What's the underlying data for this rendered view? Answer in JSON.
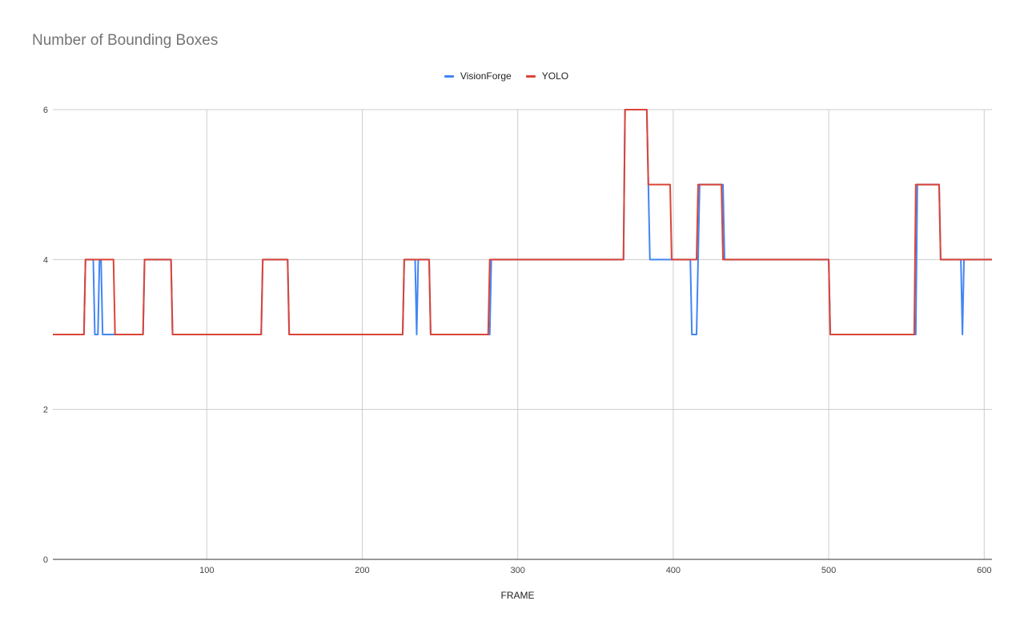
{
  "chart_data": {
    "type": "line",
    "title": "Number of Bounding Boxes",
    "xlabel": "FRAME",
    "ylabel": "",
    "xlim": [
      1,
      605
    ],
    "ylim": [
      0,
      6
    ],
    "x_ticks": [
      100,
      200,
      300,
      400,
      500,
      600
    ],
    "y_ticks": [
      0,
      2,
      4,
      6
    ],
    "grid": true,
    "legend_position": "top-center",
    "series": [
      {
        "name": "VisionForge",
        "color": "#4285f4",
        "points": [
          [
            1,
            3
          ],
          [
            21,
            3
          ],
          [
            22,
            4
          ],
          [
            27,
            4
          ],
          [
            28,
            3
          ],
          [
            30,
            3
          ],
          [
            31,
            4
          ],
          [
            32,
            4
          ],
          [
            33,
            3
          ],
          [
            40,
            3
          ],
          [
            41,
            3
          ],
          [
            59,
            3
          ],
          [
            60,
            4
          ],
          [
            77,
            4
          ],
          [
            78,
            3
          ],
          [
            135,
            3
          ],
          [
            136,
            4
          ],
          [
            152,
            4
          ],
          [
            153,
            3
          ],
          [
            226,
            3
          ],
          [
            227,
            4
          ],
          [
            234,
            4
          ],
          [
            235,
            3
          ],
          [
            236,
            4
          ],
          [
            243,
            4
          ],
          [
            244,
            3
          ],
          [
            282,
            3
          ],
          [
            283,
            4
          ],
          [
            368,
            4
          ],
          [
            369,
            6
          ],
          [
            383,
            6
          ],
          [
            385,
            4
          ],
          [
            398,
            4
          ],
          [
            399,
            4
          ],
          [
            411,
            4
          ],
          [
            412,
            3
          ],
          [
            415,
            3
          ],
          [
            416,
            4
          ],
          [
            417,
            5
          ],
          [
            432,
            5
          ],
          [
            433,
            4
          ],
          [
            500,
            4
          ],
          [
            501,
            3
          ],
          [
            556,
            3
          ],
          [
            557,
            5
          ],
          [
            571,
            5
          ],
          [
            572,
            4
          ],
          [
            585,
            4
          ],
          [
            586,
            3
          ],
          [
            587,
            4
          ],
          [
            605,
            4
          ]
        ]
      },
      {
        "name": "YOLO",
        "color": "#db4437",
        "points": [
          [
            1,
            3
          ],
          [
            21,
            3
          ],
          [
            22,
            4
          ],
          [
            40,
            4
          ],
          [
            41,
            3
          ],
          [
            59,
            3
          ],
          [
            60,
            4
          ],
          [
            77,
            4
          ],
          [
            78,
            3
          ],
          [
            135,
            3
          ],
          [
            136,
            4
          ],
          [
            152,
            4
          ],
          [
            153,
            3
          ],
          [
            226,
            3
          ],
          [
            227,
            4
          ],
          [
            243,
            4
          ],
          [
            244,
            3
          ],
          [
            281,
            3
          ],
          [
            282,
            4
          ],
          [
            368,
            4
          ],
          [
            369,
            6
          ],
          [
            383,
            6
          ],
          [
            384,
            5
          ],
          [
            398,
            5
          ],
          [
            399,
            4
          ],
          [
            415,
            4
          ],
          [
            416,
            5
          ],
          [
            431,
            5
          ],
          [
            432,
            4
          ],
          [
            500,
            4
          ],
          [
            501,
            3
          ],
          [
            555,
            3
          ],
          [
            556,
            5
          ],
          [
            571,
            5
          ],
          [
            572,
            4
          ],
          [
            605,
            4
          ]
        ]
      }
    ]
  }
}
